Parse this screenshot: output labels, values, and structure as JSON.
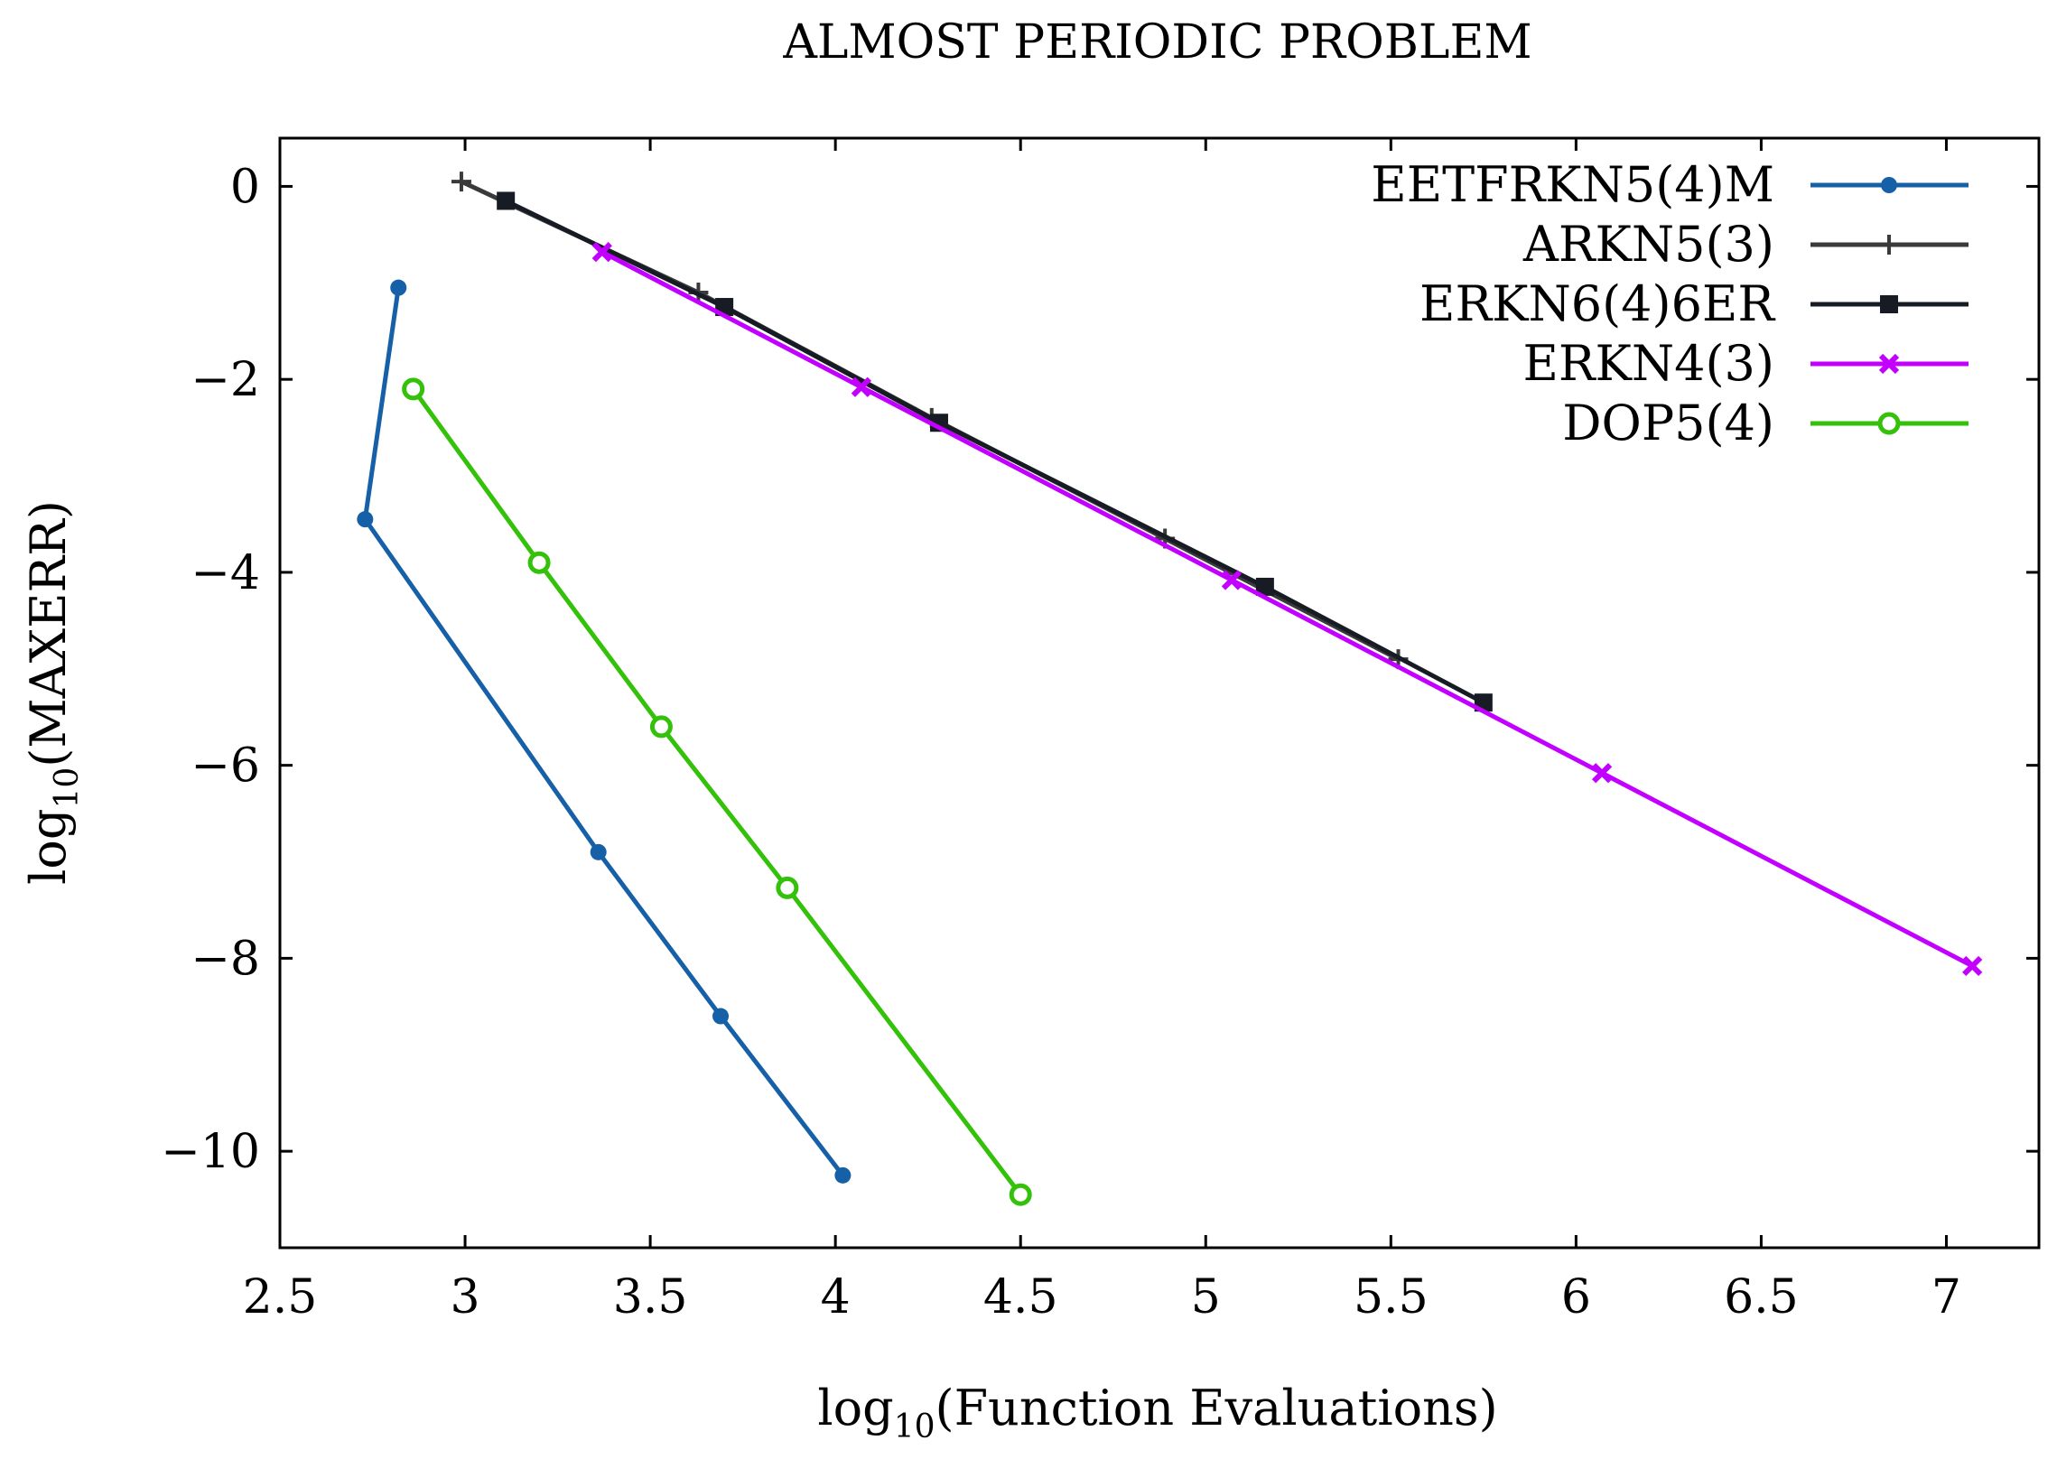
{
  "chart_data": {
    "type": "line",
    "title": "ALMOST PERIODIC PROBLEM",
    "xlabel": {
      "prefix": "log",
      "sub": "10",
      "suffix": "(Function Evaluations)"
    },
    "ylabel": {
      "prefix": "log",
      "sub": "10",
      "suffix": "(MAXERR)"
    },
    "xlim": [
      2.5,
      7.25
    ],
    "ylim": [
      -11,
      0.5
    ],
    "xticks": [
      2.5,
      3,
      3.5,
      4,
      4.5,
      5,
      5.5,
      6,
      6.5,
      7
    ],
    "xtick_labels": [
      "2.5",
      "3",
      "3.5",
      "4",
      "4.5",
      "5",
      "5.5",
      "6",
      "6.5",
      "7"
    ],
    "yticks": [
      0,
      -2,
      -4,
      -6,
      -8,
      -10
    ],
    "ytick_labels": [
      "0",
      "−2",
      "−4",
      "−6",
      "−8",
      "−10"
    ],
    "legend_position": "top-right",
    "series": [
      {
        "name": "EETFRKN5(4)M",
        "color": "#1660a8",
        "marker": "dot",
        "x": [
          2.82,
          2.73,
          3.36,
          3.69,
          4.02
        ],
        "y": [
          -1.05,
          -3.45,
          -6.9,
          -8.6,
          -10.25
        ]
      },
      {
        "name": "ARKN5(3)",
        "color": "#3a3a3a",
        "marker": "plus",
        "x": [
          2.99,
          3.63,
          4.26,
          4.89,
          5.52
        ],
        "y": [
          0.05,
          -1.1,
          -2.4,
          -3.65,
          -4.9
        ]
      },
      {
        "name": "ERKN6(4)6ER",
        "color": "#161b24",
        "marker": "square",
        "x": [
          3.11,
          3.7,
          4.28,
          5.16,
          5.75
        ],
        "y": [
          -0.15,
          -1.25,
          -2.45,
          -4.15,
          -5.35
        ]
      },
      {
        "name": "ERKN4(3)",
        "color": "#c300ff",
        "marker": "cross",
        "x": [
          3.37,
          4.07,
          5.07,
          6.07,
          7.07
        ],
        "y": [
          -0.68,
          -2.08,
          -4.08,
          -6.08,
          -8.08
        ]
      },
      {
        "name": "DOP5(4)",
        "color": "#33c10a",
        "marker": "circle",
        "x": [
          2.86,
          3.2,
          3.53,
          3.87,
          4.5
        ],
        "y": [
          -2.1,
          -3.9,
          -5.6,
          -7.27,
          -10.45
        ]
      }
    ]
  }
}
